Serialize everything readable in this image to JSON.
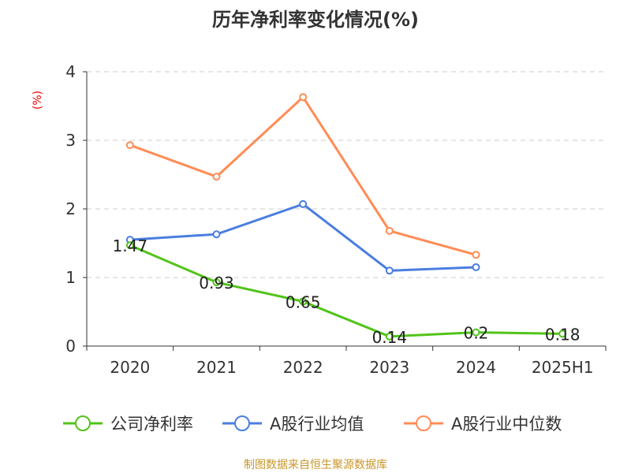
{
  "chart_data": {
    "type": "line",
    "title": "历年净利率变化情况(%)",
    "ylabel": "(%)",
    "xlabel": "",
    "categories": [
      "2020",
      "2021",
      "2022",
      "2023",
      "2024",
      "2025H1"
    ],
    "ylim": [
      0,
      4
    ],
    "yticks": [
      "0",
      "1",
      "2",
      "3",
      "4"
    ],
    "grid": true,
    "legend_position": "bottom",
    "series": [
      {
        "name": "公司净利率",
        "color": "#52c41a",
        "values": [
          1.47,
          0.93,
          0.65,
          0.14,
          0.2,
          0.18
        ],
        "labels": [
          "1.47",
          "0.93",
          "0.65",
          "0.14",
          "0.2",
          "0.18"
        ]
      },
      {
        "name": "A股行业均值",
        "color": "#4a7ee0",
        "values": [
          1.55,
          1.63,
          2.07,
          1.1,
          1.15,
          null
        ]
      },
      {
        "name": "A股行业中位数",
        "color": "#ff8c55",
        "values": [
          2.93,
          2.47,
          3.63,
          1.68,
          1.33,
          null
        ]
      }
    ]
  },
  "source": "制图数据来自恒生聚源数据库"
}
